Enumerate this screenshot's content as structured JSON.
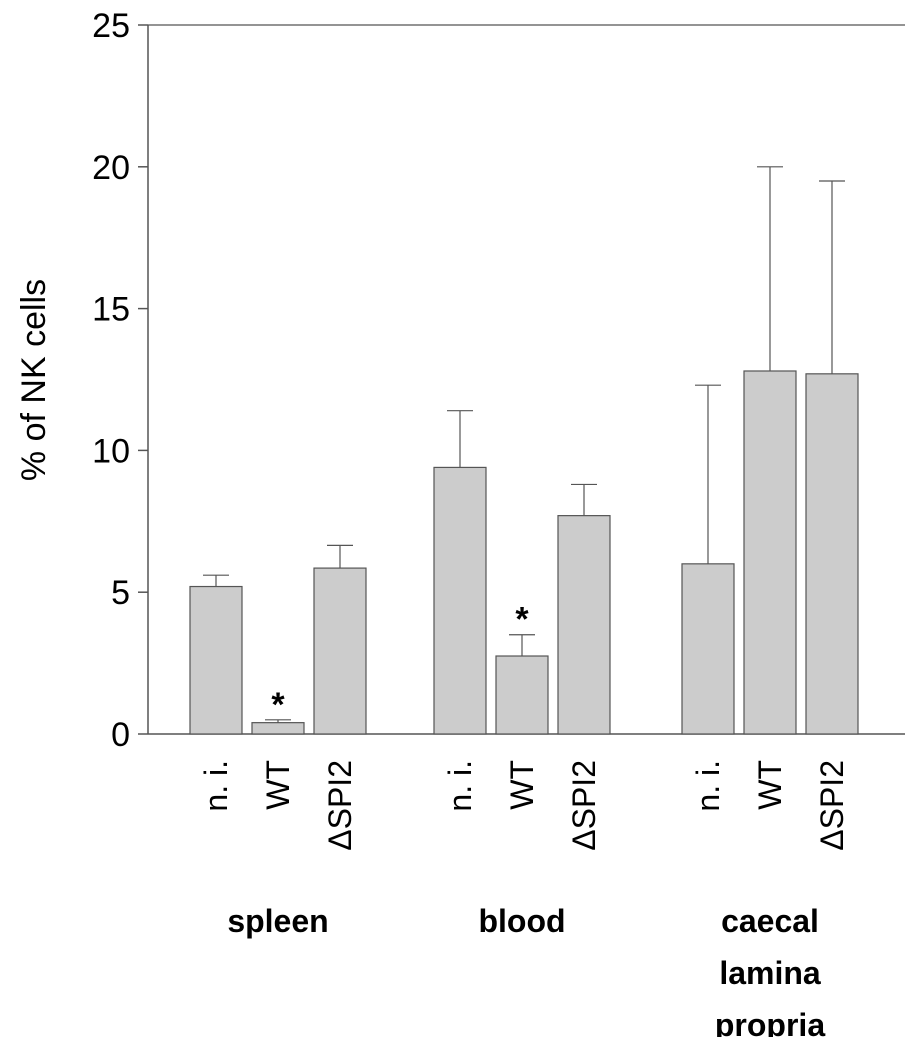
{
  "chart_data": {
    "type": "bar",
    "ylabel": "% of NK cells",
    "ylim": [
      0,
      25
    ],
    "yticks": [
      0,
      5,
      10,
      15,
      20,
      25
    ],
    "grid": false,
    "bar_color": "#cccccc",
    "groups": [
      {
        "label_lines": [
          "spleen"
        ],
        "bars": [
          {
            "category": "n. i.",
            "value": 5.2,
            "error": 0.4,
            "marker": ""
          },
          {
            "category": "WT",
            "value": 0.4,
            "error": 0.1,
            "marker": "*"
          },
          {
            "category": "ΔSPI2",
            "value": 5.85,
            "error": 0.8,
            "marker": ""
          }
        ]
      },
      {
        "label_lines": [
          "blood"
        ],
        "bars": [
          {
            "category": "n. i.",
            "value": 9.4,
            "error": 2.0,
            "marker": ""
          },
          {
            "category": "WT",
            "value": 2.75,
            "error": 0.75,
            "marker": "*"
          },
          {
            "category": "ΔSPI2",
            "value": 7.7,
            "error": 1.1,
            "marker": ""
          }
        ]
      },
      {
        "label_lines": [
          "caecal",
          "lamina",
          "propria"
        ],
        "bars": [
          {
            "category": "n. i.",
            "value": 6.0,
            "error": 6.3,
            "marker": ""
          },
          {
            "category": "WT",
            "value": 12.8,
            "error": 7.2,
            "marker": ""
          },
          {
            "category": "ΔSPI2",
            "value": 12.7,
            "error": 6.8,
            "marker": ""
          }
        ]
      }
    ]
  }
}
